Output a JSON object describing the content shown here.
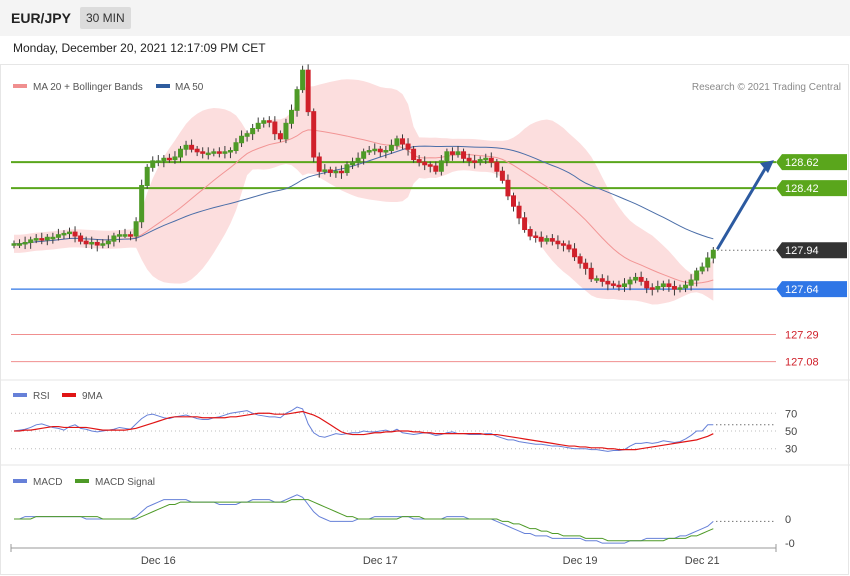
{
  "header": {
    "symbol": "EUR/JPY",
    "timeframe": "30 MIN"
  },
  "timestamp": "Monday, December 20, 2021 12:17:09 PM CET",
  "credit": "Research © 2021 Trading Central",
  "colors": {
    "resistance": "#5aa61c",
    "support": "#2f76e6",
    "lower_support": "#f08f8f",
    "bull": "#4e9a27",
    "bear": "#d0202a",
    "band": "#fcdede",
    "ma20": "#f29595",
    "ma50": "#4b6ea8",
    "arrow": "#2c5aa0",
    "rsi": "#6680d8",
    "rsi_ma": "#e01515",
    "macd": "#6680d8",
    "macd_signal": "#4e9a27"
  },
  "chart_data": [
    {
      "type": "candlestick",
      "title": "",
      "legend": [
        {
          "label": "MA 20 + Bollinger Bands",
          "color": "#f08f8f"
        },
        {
          "label": "MA 50",
          "color": "#2e5c9e"
        }
      ],
      "x_ticks": [
        "Dec 16",
        "Dec 17",
        "Dec 19",
        "Dec 21"
      ],
      "ylim": [
        127.0,
        129.1
      ],
      "current_price": 127.94,
      "levels": [
        {
          "value": 128.62,
          "label": "128.62",
          "kind": "resistance"
        },
        {
          "value": 128.42,
          "label": "128.42",
          "kind": "resistance"
        },
        {
          "value": 127.94,
          "label": "127.94",
          "kind": "last"
        },
        {
          "value": 127.64,
          "label": "127.64",
          "kind": "support"
        },
        {
          "value": 127.29,
          "label": "127.29",
          "kind": "lower"
        },
        {
          "value": 127.08,
          "label": "127.08",
          "kind": "lower"
        }
      ],
      "projection": {
        "from": 127.94,
        "to": 128.62
      },
      "close": [
        127.99,
        127.99,
        128.0,
        128.02,
        128.03,
        128.02,
        128.04,
        128.04,
        128.06,
        128.07,
        128.08,
        128.05,
        128.01,
        127.99,
        128.0,
        127.98,
        127.99,
        128.01,
        128.05,
        128.06,
        128.06,
        128.05,
        128.16,
        128.44,
        128.58,
        128.63,
        128.63,
        128.65,
        128.64,
        128.66,
        128.72,
        128.75,
        128.72,
        128.7,
        128.69,
        128.69,
        128.7,
        128.69,
        128.7,
        128.71,
        128.77,
        128.82,
        128.84,
        128.88,
        128.92,
        128.94,
        128.93,
        128.84,
        128.8,
        128.92,
        129.02,
        129.18,
        129.33,
        129.01,
        128.66,
        128.55,
        128.56,
        128.54,
        128.55,
        128.54,
        128.6,
        128.62,
        128.65,
        128.7,
        128.71,
        128.72,
        128.7,
        128.71,
        128.75,
        128.8,
        128.76,
        128.72,
        128.64,
        128.62,
        128.6,
        128.59,
        128.55,
        128.63,
        128.7,
        128.68,
        128.7,
        128.65,
        128.63,
        128.62,
        128.64,
        128.65,
        128.62,
        128.55,
        128.48,
        128.36,
        128.28,
        128.19,
        128.1,
        128.05,
        128.04,
        128.01,
        128.03,
        128.01,
        127.99,
        127.98,
        127.95,
        127.89,
        127.84,
        127.8,
        127.72,
        127.72,
        127.7,
        127.68,
        127.67,
        127.66,
        127.68,
        127.71,
        127.73,
        127.7,
        127.65,
        127.64,
        127.66,
        127.68,
        127.66,
        127.64,
        127.65,
        127.67,
        127.71,
        127.78,
        127.81,
        127.88,
        127.94
      ]
    },
    {
      "type": "line",
      "title": "RSI",
      "legend": [
        {
          "label": "RSI",
          "color": "#6680d8"
        },
        {
          "label": "9MA",
          "color": "#e01515"
        }
      ],
      "ticks": [
        {
          "value": 70,
          "label": "70"
        },
        {
          "value": 50,
          "label": "50"
        },
        {
          "value": 30,
          "label": "30"
        }
      ],
      "ylim": [
        15,
        85
      ],
      "rsi": [
        50,
        51,
        52,
        54,
        57,
        58,
        56,
        54,
        53,
        51,
        55,
        57,
        53,
        52,
        50,
        49,
        50,
        51,
        52,
        54,
        53,
        52,
        58,
        64,
        68,
        69,
        67,
        65,
        64,
        66,
        67,
        68,
        66,
        64,
        63,
        63,
        65,
        66,
        68,
        70,
        71,
        72,
        73,
        70,
        68,
        67,
        66,
        66,
        65,
        70,
        73,
        77,
        75,
        58,
        48,
        44,
        43,
        45,
        47,
        46,
        47,
        48,
        48,
        50,
        49,
        49,
        50,
        51,
        49,
        52,
        48,
        47,
        46,
        47,
        48,
        47,
        45,
        46,
        48,
        49,
        47,
        47,
        46,
        46,
        46,
        47,
        47,
        44,
        42,
        40,
        40,
        38,
        37,
        36,
        35,
        35,
        34,
        33,
        33,
        32,
        31,
        30,
        30,
        30,
        29,
        29,
        28,
        27,
        28,
        28,
        29,
        33,
        36,
        36,
        37,
        36,
        37,
        39,
        38,
        37,
        38,
        41,
        45,
        50,
        50,
        57,
        57
      ],
      "ma9": [
        50,
        50,
        51,
        51,
        52,
        53,
        54,
        55,
        55,
        54,
        54,
        54,
        54,
        54,
        53,
        52,
        51,
        51,
        51,
        51,
        51,
        52,
        53,
        55,
        57,
        59,
        61,
        63,
        65,
        66,
        66,
        66,
        66,
        66,
        65,
        65,
        65,
        65,
        65,
        66,
        66,
        67,
        68,
        69,
        70,
        70,
        70,
        69,
        69,
        69,
        70,
        71,
        72,
        70,
        68,
        65,
        61,
        57,
        53,
        49,
        47,
        46,
        46,
        46,
        47,
        48,
        48,
        49,
        49,
        50,
        50,
        50,
        49,
        49,
        48,
        48,
        47,
        47,
        47,
        47,
        47,
        47,
        47,
        47,
        47,
        46,
        46,
        46,
        45,
        44,
        43,
        42,
        41,
        40,
        39,
        38,
        37,
        36,
        35,
        34,
        33,
        33,
        32,
        32,
        31,
        31,
        31,
        30,
        30,
        29,
        29,
        29,
        29,
        30,
        31,
        32,
        33,
        34,
        35,
        36,
        37,
        38,
        39,
        40,
        42,
        44,
        47
      ]
    },
    {
      "type": "line",
      "title": "MACD",
      "legend": [
        {
          "label": "MACD",
          "color": "#6680d8"
        },
        {
          "label": "MACD Signal",
          "color": "#4e9a27"
        }
      ],
      "ticks": [
        {
          "value": 0,
          "label": "0"
        },
        {
          "value": -0.1,
          "label": "-0"
        }
      ],
      "ylim": [
        -0.12,
        0.12
      ],
      "macd": [
        0.0,
        0.0,
        0.01,
        0.01,
        0.01,
        0.01,
        0.01,
        0.01,
        0.01,
        0.01,
        0.01,
        0.01,
        0.01,
        0.0,
        0.0,
        0.0,
        0.0,
        0.0,
        0.0,
        0.0,
        0.0,
        0.0,
        0.01,
        0.03,
        0.05,
        0.06,
        0.07,
        0.08,
        0.08,
        0.08,
        0.08,
        0.08,
        0.07,
        0.07,
        0.07,
        0.07,
        0.07,
        0.06,
        0.06,
        0.06,
        0.06,
        0.07,
        0.07,
        0.08,
        0.08,
        0.08,
        0.08,
        0.07,
        0.07,
        0.08,
        0.09,
        0.1,
        0.09,
        0.06,
        0.03,
        0.01,
        0.0,
        -0.01,
        -0.01,
        -0.01,
        -0.01,
        -0.01,
        0.0,
        0.0,
        0.0,
        0.01,
        0.01,
        0.01,
        0.01,
        0.01,
        0.01,
        0.01,
        0.0,
        0.0,
        0.0,
        0.0,
        0.0,
        0.0,
        0.01,
        0.01,
        0.01,
        0.01,
        0.0,
        0.0,
        0.0,
        0.0,
        0.0,
        -0.01,
        -0.02,
        -0.03,
        -0.04,
        -0.05,
        -0.06,
        -0.06,
        -0.07,
        -0.07,
        -0.07,
        -0.08,
        -0.08,
        -0.08,
        -0.08,
        -0.08,
        -0.08,
        -0.09,
        -0.09,
        -0.09,
        -0.1,
        -0.1,
        -0.1,
        -0.1,
        -0.1,
        -0.09,
        -0.09,
        -0.09,
        -0.08,
        -0.08,
        -0.08,
        -0.08,
        -0.08,
        -0.08,
        -0.07,
        -0.07,
        -0.06,
        -0.05,
        -0.04,
        -0.03,
        -0.01
      ],
      "signal": [
        0.0,
        0.0,
        0.0,
        0.0,
        0.01,
        0.01,
        0.01,
        0.01,
        0.01,
        0.01,
        0.01,
        0.01,
        0.01,
        0.01,
        0.01,
        0.01,
        0.0,
        0.0,
        0.0,
        0.0,
        0.0,
        0.0,
        0.0,
        0.01,
        0.02,
        0.03,
        0.04,
        0.05,
        0.06,
        0.06,
        0.07,
        0.07,
        0.07,
        0.07,
        0.07,
        0.07,
        0.07,
        0.07,
        0.07,
        0.07,
        0.07,
        0.07,
        0.07,
        0.07,
        0.07,
        0.07,
        0.07,
        0.07,
        0.07,
        0.07,
        0.08,
        0.08,
        0.08,
        0.08,
        0.07,
        0.06,
        0.05,
        0.04,
        0.03,
        0.02,
        0.01,
        0.01,
        0.0,
        0.0,
        0.0,
        0.0,
        0.0,
        0.0,
        0.0,
        0.0,
        0.01,
        0.01,
        0.01,
        0.01,
        0.0,
        0.0,
        0.0,
        0.0,
        0.0,
        0.0,
        0.0,
        0.0,
        0.0,
        0.0,
        0.0,
        0.0,
        0.0,
        0.0,
        -0.01,
        -0.01,
        -0.02,
        -0.02,
        -0.03,
        -0.04,
        -0.04,
        -0.05,
        -0.05,
        -0.06,
        -0.06,
        -0.07,
        -0.07,
        -0.07,
        -0.07,
        -0.08,
        -0.08,
        -0.08,
        -0.08,
        -0.09,
        -0.09,
        -0.09,
        -0.09,
        -0.09,
        -0.09,
        -0.09,
        -0.09,
        -0.09,
        -0.09,
        -0.09,
        -0.08,
        -0.08,
        -0.08,
        -0.08,
        -0.07,
        -0.07,
        -0.06,
        -0.05,
        -0.04
      ]
    }
  ]
}
